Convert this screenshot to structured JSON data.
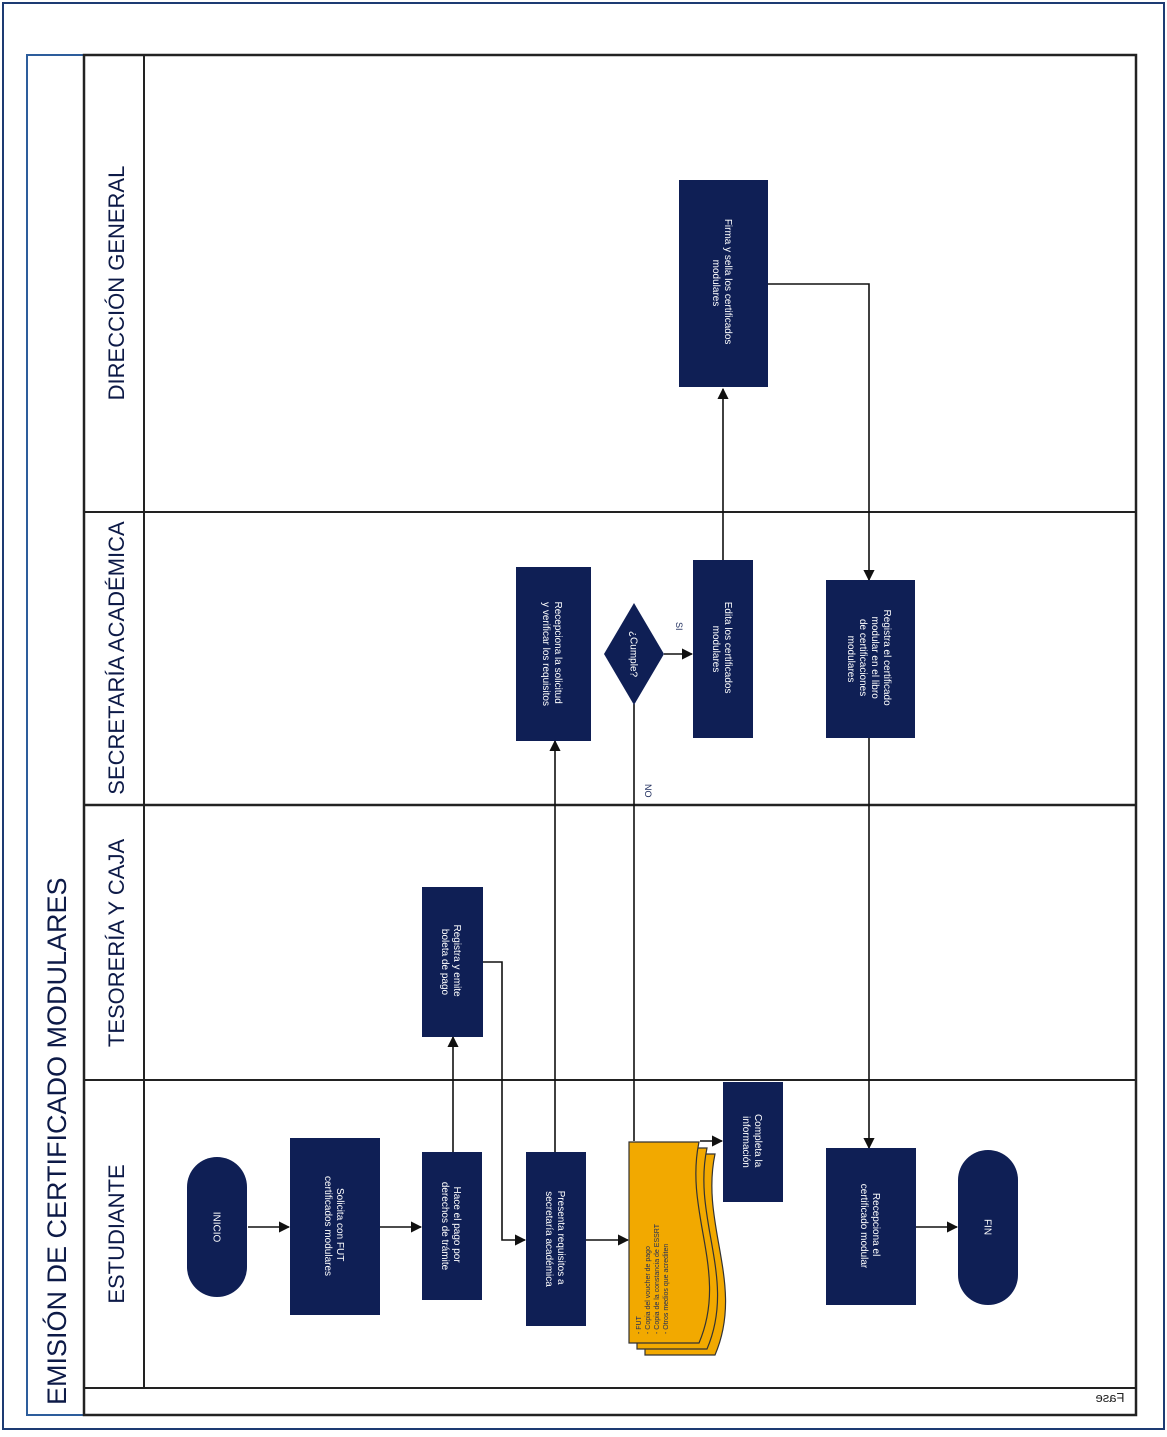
{
  "diagram": {
    "title": "EMISIÓN DE CERTIFICADO MODULARES",
    "phase_label": "Fase",
    "lanes": [
      "ESTUDIANTE",
      "TESORERÍA Y CAJA",
      "SECRETARÍA ACADÉMICA",
      "DIRECCIÓN GENERAL"
    ],
    "nodes": {
      "start": "INICIO",
      "solicita": [
        "Solicita con FUT",
        "certificados modulares"
      ],
      "pago": [
        "Hace el pago por",
        "derechos de trámite"
      ],
      "registra_boleta": [
        "Registra y emite",
        "boleta de pago"
      ],
      "presenta": [
        "Presenta requisitos a",
        "secretaría académica"
      ],
      "documents": [
        "- FUT",
        "- Copia del voucher de pago",
        "- Copia de la constancia de ESSRT",
        "- Otros medios que acrediten"
      ],
      "completa": [
        "Completa la",
        "información"
      ],
      "recepciona_solicitud": [
        "Recepciona la solicitud",
        "y verificar los requisitos"
      ],
      "decision": "¿Cumple?",
      "edita": [
        "Edita los certificados",
        "modulares"
      ],
      "firma": [
        "Firma y sella los certificados",
        "modulares"
      ],
      "registra_libro": [
        "Registra el certificado",
        "modular en el libro",
        "de certificaciones",
        "modulares"
      ],
      "recepciona_certificado": [
        "Recepciona el",
        "certificado modular"
      ],
      "end": "FIN"
    },
    "edge_labels": {
      "yes": "SI",
      "no": "NO"
    },
    "colors": {
      "box_fill": "#0f1f55",
      "document_fill": "#f2a900",
      "line": "#1a1a1a",
      "text_dark": "#0d1a47"
    }
  }
}
